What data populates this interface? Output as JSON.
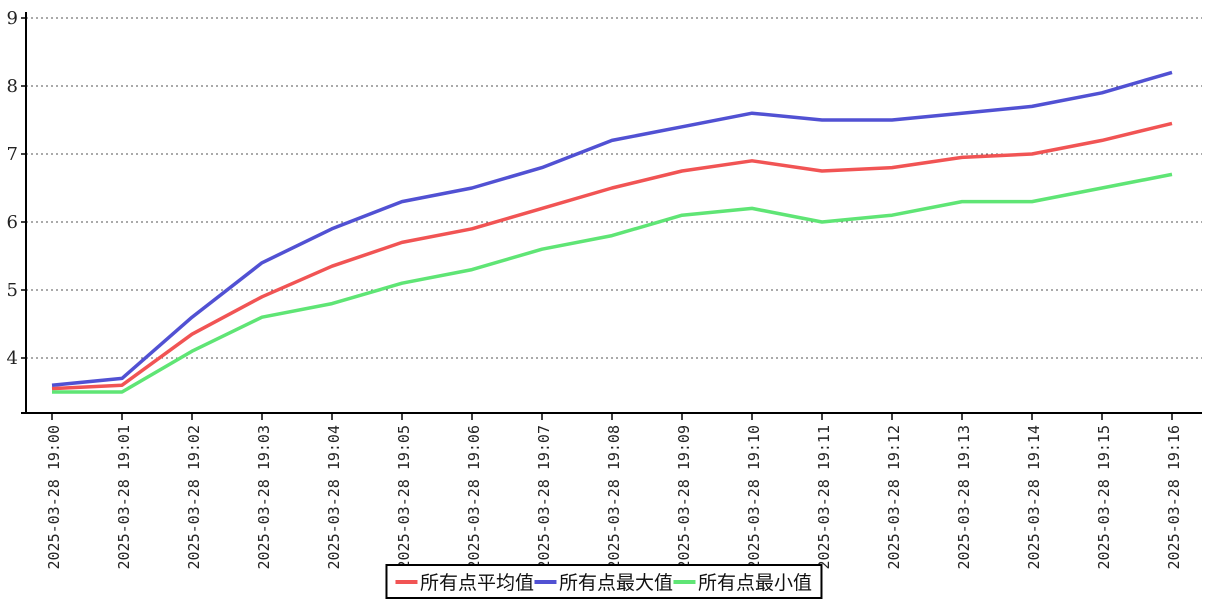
{
  "chart_data": {
    "type": "line",
    "title": "",
    "xlabel": "",
    "ylabel": "",
    "categories": [
      "2025-03-28 19:00",
      "2025-03-28 19:01",
      "2025-03-28 19:02",
      "2025-03-28 19:03",
      "2025-03-28 19:04",
      "2025-03-28 19:05",
      "2025-03-28 19:06",
      "2025-03-28 19:07",
      "2025-03-28 19:08",
      "2025-03-28 19:09",
      "2025-03-28 19:10",
      "2025-03-28 19:11",
      "2025-03-28 19:12",
      "2025-03-28 19:13",
      "2025-03-28 19:14",
      "2025-03-28 19:15",
      "2025-03-28 19:16"
    ],
    "series": [
      {
        "name": "所有点平均值",
        "color": "#f15454",
        "values": [
          3.55,
          3.6,
          4.35,
          4.9,
          5.35,
          5.7,
          5.9,
          6.2,
          6.5,
          6.75,
          6.9,
          6.75,
          6.8,
          6.95,
          7.0,
          7.2,
          7.45
        ]
      },
      {
        "name": "所有点最大值",
        "color": "#5151d3",
        "values": [
          3.6,
          3.7,
          4.6,
          5.4,
          5.9,
          6.3,
          6.5,
          6.8,
          7.2,
          7.4,
          7.6,
          7.5,
          7.5,
          7.6,
          7.7,
          7.9,
          8.2
        ]
      },
      {
        "name": "所有点最小值",
        "color": "#5fe575",
        "values": [
          3.5,
          3.5,
          4.1,
          4.6,
          4.8,
          5.1,
          5.3,
          5.6,
          5.8,
          6.1,
          6.2,
          6.0,
          6.1,
          6.3,
          6.3,
          6.5,
          6.7
        ]
      }
    ],
    "yticks": [
      4,
      5,
      6,
      7,
      8,
      9
    ],
    "ylim": [
      3.2,
      9.0
    ],
    "grid": "horizontal dashed",
    "legend_position": "bottom-center",
    "axis_color": "#000000",
    "grid_color": "#555555",
    "background": "#ffffff"
  }
}
